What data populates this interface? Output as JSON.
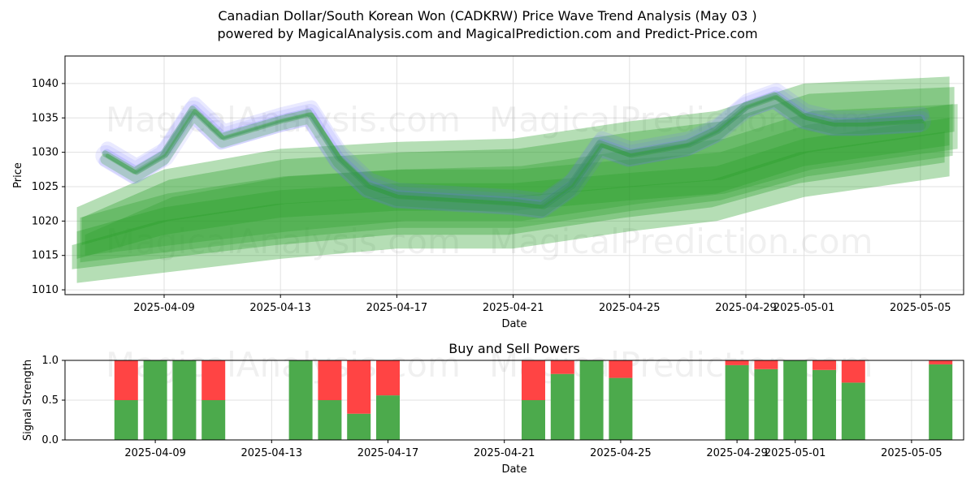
{
  "title": "Canadian Dollar/South Korean Won (CADKRW) Price Wave Trend Analysis (May 03 )",
  "subtitle": "powered by MagicalAnalysis.com and MagicalPrediction.com and Predict-Price.com",
  "watermarks": [
    "MagicalAnalysis.com",
    "MagicalPrediction.com"
  ],
  "colors": {
    "green_band": "#2ca02c",
    "blue_wave": "#6b6bff",
    "buy": "#4caa4c",
    "sell": "#ff4444",
    "grid": "#e0e0e0"
  },
  "chart_data": [
    {
      "type": "line",
      "title": "",
      "xlabel": "Date",
      "ylabel": "Price",
      "ylim": [
        1009.3,
        1044.0
      ],
      "yticks": [
        1010,
        1015,
        1020,
        1025,
        1030,
        1035,
        1040
      ],
      "xticks": [
        "2025-04-09",
        "2025-04-13",
        "2025-04-17",
        "2025-04-21",
        "2025-04-25",
        "2025-04-29",
        "2025-05-01",
        "2025-05-05"
      ],
      "grid": true,
      "series": [
        {
          "kind": "price-wave",
          "x": [
            "2025-04-07",
            "2025-04-08",
            "2025-04-09",
            "2025-04-10",
            "2025-04-11",
            "2025-04-13",
            "2025-04-14",
            "2025-04-15",
            "2025-04-16",
            "2025-04-17",
            "2025-04-19",
            "2025-04-21",
            "2025-04-22",
            "2025-04-23",
            "2025-04-24",
            "2025-04-25",
            "2025-04-27",
            "2025-04-28",
            "2025-04-29",
            "2025-04-30",
            "2025-05-01",
            "2025-05-02",
            "2025-05-03",
            "2025-05-05"
          ],
          "values": [
            1029.5,
            1027.0,
            1029.5,
            1036.0,
            1032.0,
            1034.5,
            1035.5,
            1029.0,
            1025.0,
            1023.5,
            1023.0,
            1022.5,
            1022.0,
            1025.0,
            1031.0,
            1029.5,
            1031.0,
            1033.0,
            1036.5,
            1038.0,
            1035.0,
            1034.0,
            1034.0,
            1034.5
          ]
        },
        {
          "kind": "trend-band-upper",
          "x": [
            "2025-04-06",
            "2025-04-09",
            "2025-04-13",
            "2025-04-17",
            "2025-04-21",
            "2025-04-25",
            "2025-04-28",
            "2025-05-01",
            "2025-05-06"
          ],
          "values": [
            1022.0,
            1027.5,
            1030.5,
            1031.5,
            1032.0,
            1034.5,
            1036.0,
            1040.0,
            1041.0
          ]
        },
        {
          "kind": "trend-band-middle",
          "x": [
            "2025-04-06",
            "2025-04-09",
            "2025-04-13",
            "2025-04-17",
            "2025-04-21",
            "2025-04-25",
            "2025-04-28",
            "2025-05-01",
            "2025-05-06"
          ],
          "values": [
            1016.5,
            1020.0,
            1022.5,
            1023.5,
            1023.5,
            1025.0,
            1026.0,
            1030.0,
            1033.0
          ]
        },
        {
          "kind": "trend-band-lower",
          "x": [
            "2025-04-06",
            "2025-04-09",
            "2025-04-13",
            "2025-04-17",
            "2025-04-21",
            "2025-04-25",
            "2025-04-28",
            "2025-05-01",
            "2025-05-06"
          ],
          "values": [
            1011.0,
            1012.5,
            1014.5,
            1016.0,
            1016.0,
            1018.5,
            1020.0,
            1023.5,
            1026.5
          ]
        }
      ]
    },
    {
      "type": "bar",
      "title": "Buy and Sell Powers",
      "xlabel": "Date",
      "ylabel": "Signal Strength",
      "ylim": [
        0.0,
        1.0
      ],
      "yticks": [
        "0.0",
        "0.5",
        "1.0"
      ],
      "xticks": [
        "2025-04-09",
        "2025-04-13",
        "2025-04-17",
        "2025-04-21",
        "2025-04-25",
        "2025-04-29",
        "2025-05-01",
        "2025-05-05"
      ],
      "grid": true,
      "categories": [
        "2025-04-08",
        "2025-04-09",
        "2025-04-10",
        "2025-04-11",
        "2025-04-14",
        "2025-04-15",
        "2025-04-16",
        "2025-04-17",
        "2025-04-22",
        "2025-04-23",
        "2025-04-24",
        "2025-04-25",
        "2025-04-29",
        "2025-04-30",
        "2025-05-01",
        "2025-05-02",
        "2025-05-03",
        "2025-05-06"
      ],
      "series": [
        {
          "name": "Buy",
          "values": [
            0.5,
            1.0,
            1.0,
            0.5,
            1.0,
            0.5,
            0.33,
            0.56,
            0.5,
            0.83,
            1.0,
            0.78,
            0.94,
            0.89,
            1.0,
            0.88,
            0.72,
            0.95
          ]
        },
        {
          "name": "Sell",
          "values": [
            0.5,
            0.0,
            0.0,
            0.5,
            0.0,
            0.5,
            0.67,
            0.44,
            0.5,
            0.17,
            0.0,
            0.22,
            0.06,
            0.11,
            0.0,
            0.12,
            0.28,
            0.05
          ]
        }
      ]
    }
  ]
}
